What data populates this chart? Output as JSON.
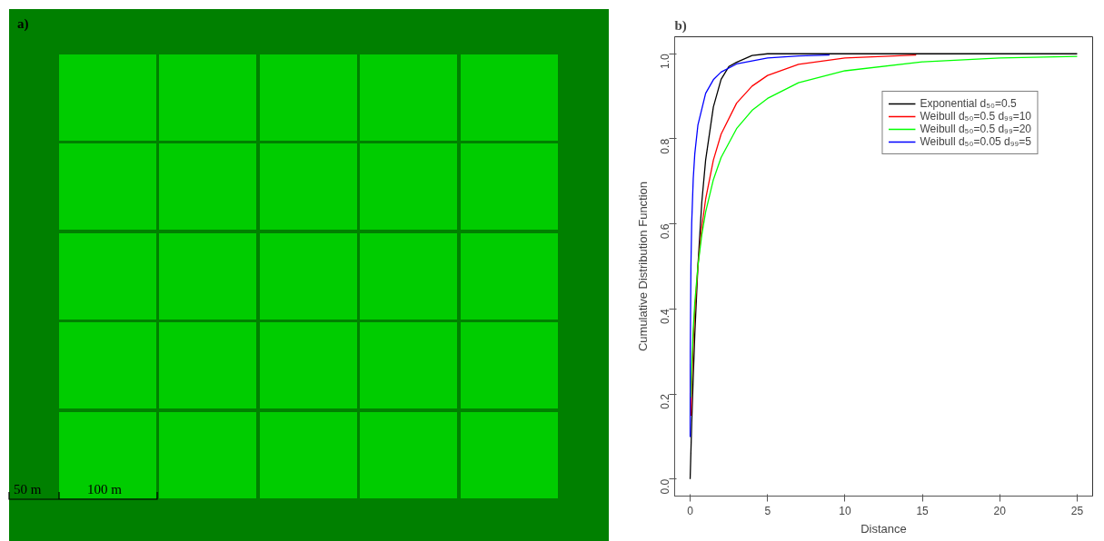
{
  "chart_data": [
    {
      "type": "other",
      "title": "a)",
      "annotations": [
        "50 m",
        "100 m"
      ]
    },
    {
      "type": "line",
      "title": "b)",
      "xlabel": "Distance",
      "ylabel": "Cumulative Distribution Function",
      "xlim": [
        -1,
        26
      ],
      "ylim": [
        -0.04,
        1.04
      ],
      "xticks": [
        0,
        5,
        10,
        15,
        20,
        25
      ],
      "yticks": [
        {
          "value": 0,
          "label": "0.0"
        },
        {
          "value": 0.2,
          "label": "0.2"
        },
        {
          "value": 0.4,
          "label": "0.4"
        },
        {
          "value": 0.6,
          "label": "0.6"
        },
        {
          "value": 0.8,
          "label": "0.8"
        },
        {
          "value": 1,
          "label": "1.0"
        }
      ],
      "grid": false,
      "legend": "top right",
      "line_style": "solid",
      "marker": "none",
      "series": [
        {
          "name": "Exponential d₅₀=0.5",
          "color": "#000000",
          "x": [
            0,
            0.1,
            0.2,
            0.3,
            0.5,
            0.75,
            1,
            1.5,
            2,
            2.5,
            3,
            4,
            5,
            25
          ],
          "values": [
            0,
            0.13,
            0.24,
            0.34,
            0.5,
            0.65,
            0.75,
            0.875,
            0.94,
            0.97,
            0.98,
            0.996,
            1.0,
            1.0
          ]
        },
        {
          "name": "Weibull d₅₀=0.5 d₉₉=10",
          "color": "#ff0000",
          "x": [
            0.05,
            0.1,
            0.2,
            0.3,
            0.5,
            0.75,
            1,
            1.5,
            2,
            3,
            4,
            5,
            7,
            10,
            14.6
          ],
          "values": [
            0.149,
            0.222,
            0.322,
            0.395,
            0.5,
            0.592,
            0.658,
            0.75,
            0.811,
            0.884,
            0.924,
            0.949,
            0.975,
            0.99,
            0.997
          ]
        },
        {
          "name": "Weibull d₅₀=0.5 d₉₉=20",
          "color": "#00ff00",
          "x": [
            0.05,
            0.1,
            0.2,
            0.3,
            0.5,
            0.75,
            1,
            1.5,
            2,
            3,
            4,
            5,
            7,
            10,
            15,
            20,
            25
          ],
          "values": [
            0.192,
            0.262,
            0.352,
            0.414,
            0.5,
            0.574,
            0.628,
            0.704,
            0.756,
            0.824,
            0.867,
            0.895,
            0.932,
            0.96,
            0.981,
            0.99,
            0.994
          ]
        },
        {
          "name": "Weibull d₅₀=0.05 d₉₉=5",
          "color": "#0000ff",
          "x": [
            0.0005,
            0.001,
            0.01,
            0.05,
            0.1,
            0.2,
            0.3,
            0.5,
            1,
            1.5,
            2,
            3,
            5,
            7,
            9
          ],
          "values": [
            0.099,
            0.13,
            0.301,
            0.5,
            0.602,
            0.706,
            0.765,
            0.832,
            0.907,
            0.939,
            0.957,
            0.976,
            0.99,
            0.995,
            0.997
          ]
        }
      ]
    }
  ]
}
